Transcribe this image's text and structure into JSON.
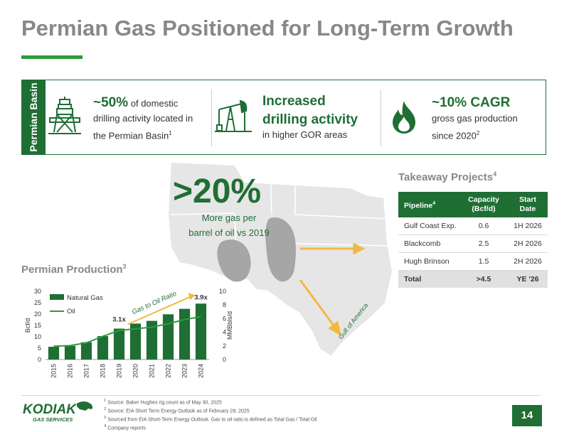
{
  "title": "Permian Gas Positioned for Long-Term Growth",
  "side_tab": "Permian Basin",
  "stats": [
    {
      "big": "~50%",
      "rest": " of domestic",
      "line2": "drilling activity located in",
      "line3": "the Permian Basin",
      "sup": "1"
    },
    {
      "big1": "Increased",
      "big2": "drilling activity",
      "line3": "in higher GOR areas"
    },
    {
      "big": "~10% CAGR",
      "line2": "gross gas production",
      "line3": "since 2020",
      "sup": "2"
    }
  ],
  "map": {
    "big": ">20%",
    "sub1": "More gas per",
    "sub2": "barrel of oil vs 2019",
    "gulf_label": "Gulf of America"
  },
  "takeaway": {
    "title": "Takeaway Projects",
    "title_sup": "4",
    "headers": {
      "pipeline": "Pipeline",
      "pipeline_sup": "4",
      "capacity1": "Capacity",
      "capacity2": "(Bcf/d)",
      "start1": "Start",
      "start2": "Date"
    },
    "rows": [
      {
        "pipeline": "Gulf Coast Exp.",
        "capacity": "0.6",
        "start": "1H 2026"
      },
      {
        "pipeline": "Blackcomb",
        "capacity": "2.5",
        "start": "2H 2026"
      },
      {
        "pipeline": "Hugh Brinson",
        "capacity": "1.5",
        "start": "2H 2026"
      }
    ],
    "total": {
      "pipeline": "Total",
      "capacity": ">4.5",
      "start": "YE '26"
    }
  },
  "production": {
    "title": "Permian Production",
    "title_sup": "3"
  },
  "chart_data": {
    "type": "bar",
    "categories": [
      "2015",
      "2016",
      "2017",
      "2018",
      "2019",
      "2020",
      "2021",
      "2022",
      "2023",
      "2024"
    ],
    "series": [
      {
        "name": "Natural Gas",
        "type": "bar",
        "axis": "left",
        "color": "#1f6e34",
        "values": [
          5.6,
          6.0,
          7.6,
          10.3,
          13.6,
          15.8,
          17.0,
          19.9,
          22.3,
          24.6
        ]
      },
      {
        "name": "Oil",
        "type": "line",
        "axis": "right",
        "color": "#2e9a3e",
        "values": [
          1.95,
          2.05,
          2.45,
          3.4,
          4.25,
          4.5,
          4.75,
          5.25,
          5.85,
          6.3
        ]
      }
    ],
    "ylabel": "Bcf/d",
    "ylim": [
      0,
      30
    ],
    "yticks": [
      0,
      5,
      10,
      15,
      20,
      25,
      30
    ],
    "y2label": "MMBbls/d",
    "y2lim": [
      0,
      10
    ],
    "y2ticks": [
      0,
      2,
      4,
      6,
      8,
      10
    ],
    "annotations": {
      "label_2019": "3.1x",
      "label_2024": "3.9x",
      "arrow_text": "Gas to Oil Ratio"
    },
    "legend": "top-left"
  },
  "footnotes": [
    {
      "sup": "1",
      "text": "Source: Baker Hughes rig count as of May 30, 2025"
    },
    {
      "sup": "2",
      "text": "Source:  EIA Short Term Energy Outlook as of February 28, 2025"
    },
    {
      "sup": "3",
      "text": "Sourced from EIA Short-Term Energy Outlook. Gas to oil ratio is defined as Total Gas / Total Oil"
    },
    {
      "sup": "4",
      "text": "Company reports"
    }
  ],
  "logo": {
    "name": "KODIAK",
    "tagline": "GAS SERVICES"
  },
  "page_number": "14",
  "colors": {
    "brand_green": "#1f6e34",
    "light_green": "#2e9a3e",
    "gold": "#f0b941",
    "gray_title": "#888888"
  }
}
